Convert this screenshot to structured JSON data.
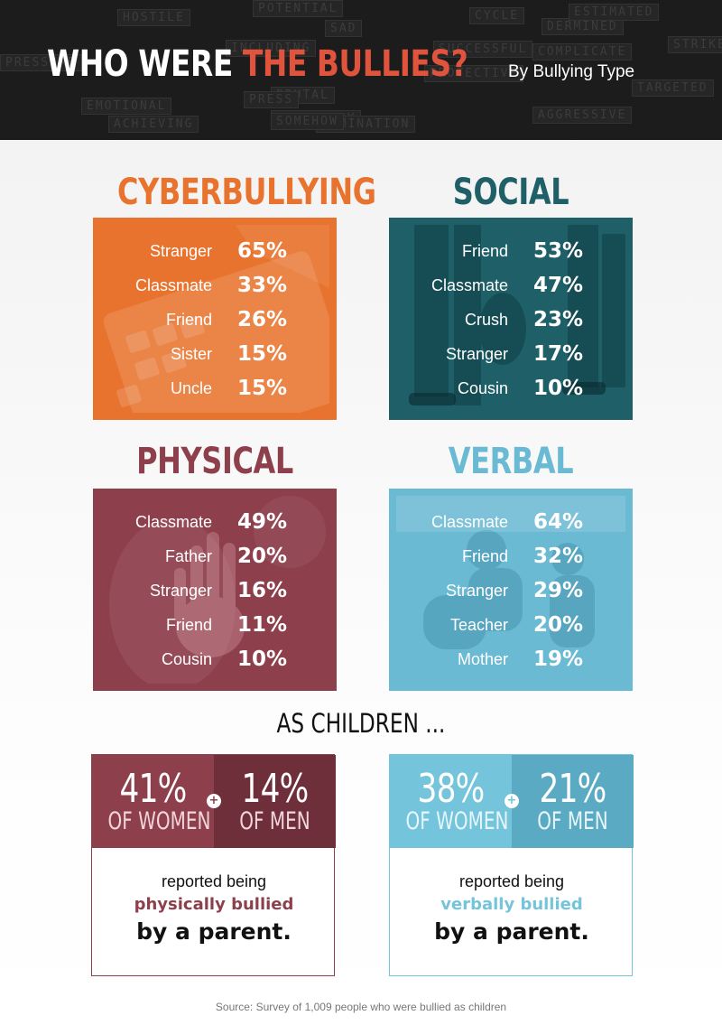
{
  "header": {
    "title_part1": "WHO WERE ",
    "title_part2": "THE BULLIES?",
    "subtitle": "By Bullying Type",
    "background_words": [
      "POTENTIAL",
      "SAD",
      "INCLUDING",
      "EMOTIONAL",
      "ACHIEVING",
      "PROTECTIVE",
      "SUCCESSFUL",
      "COMPLICATE",
      "BRUTAL",
      "SECONDARY",
      "DOMINATION",
      "CYCLE",
      "AGGRESSIVE",
      "PRESS",
      "SOMEHOW",
      "DERMINED",
      "HOSTILE",
      "PRESSURE",
      "ESTIMATED",
      "STRIKE",
      "TARGETED"
    ],
    "colors": {
      "background": "#1c1c1c",
      "title_white": "#ffffff",
      "title_accent": "#e0533d"
    }
  },
  "chart_data": [
    {
      "type": "table",
      "title": "CYBERBULLYING",
      "color": "#e8732e",
      "categories": [
        "Stranger",
        "Classmate",
        "Friend",
        "Sister",
        "Uncle"
      ],
      "values": [
        65,
        33,
        26,
        15,
        15
      ],
      "value_labels": [
        "65%",
        "33%",
        "26%",
        "15%",
        "15%"
      ]
    },
    {
      "type": "table",
      "title": "SOCIAL",
      "color": "#1f6068",
      "categories": [
        "Friend",
        "Classmate",
        "Crush",
        "Stranger",
        "Cousin"
      ],
      "values": [
        53,
        47,
        23,
        17,
        10
      ],
      "value_labels": [
        "53%",
        "47%",
        "23%",
        "17%",
        "10%"
      ]
    },
    {
      "type": "table",
      "title": "PHYSICAL",
      "color": "#8e3f4c",
      "categories": [
        "Classmate",
        "Father",
        "Stranger",
        "Friend",
        "Cousin"
      ],
      "values": [
        49,
        20,
        16,
        11,
        10
      ],
      "value_labels": [
        "49%",
        "20%",
        "16%",
        "11%",
        "10%"
      ]
    },
    {
      "type": "table",
      "title": "VERBAL",
      "color": "#6bbad3",
      "categories": [
        "Classmate",
        "Friend",
        "Stranger",
        "Teacher",
        "Mother"
      ],
      "values": [
        64,
        32,
        29,
        20,
        19
      ],
      "value_labels": [
        "64%",
        "32%",
        "29%",
        "20%",
        "19%"
      ]
    }
  ],
  "as_children": {
    "heading": "AS CHILDREN ...",
    "cards": [
      {
        "women_pct": "41%",
        "women_label": "OF WOMEN",
        "men_pct": "14%",
        "men_label": "OF MEN",
        "plus": "+",
        "reported": "reported being",
        "how": "physically bullied",
        "by": "by a parent.",
        "color_women": "#8e3f4c",
        "color_men": "#6e2e3a",
        "color_text_small": "#f1d6db"
      },
      {
        "women_pct": "38%",
        "women_label": "OF WOMEN",
        "men_pct": "21%",
        "men_label": "OF MEN",
        "plus": "+",
        "reported": "reported being",
        "how": "verbally bullied",
        "by": "by a parent.",
        "color_women": "#74c4dc",
        "color_men": "#5aaac3",
        "color_text_small": "#e6f6fb"
      }
    ]
  },
  "source": "Source: Survey of 1,009 people who were bullied as children"
}
